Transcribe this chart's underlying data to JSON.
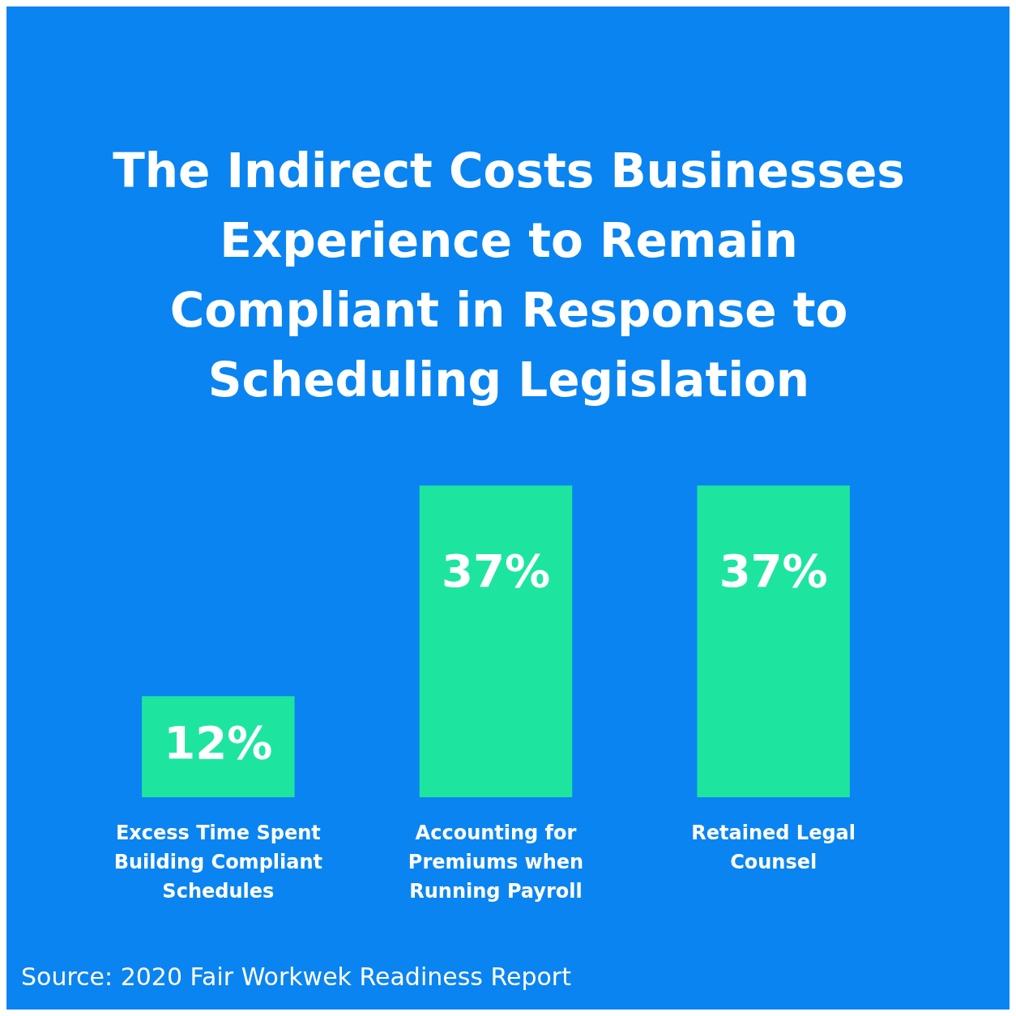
{
  "chart_data": {
    "type": "bar",
    "title": "The Indirect Costs Businesses Experience to Remain Compliant in Response to Scheduling Legislation",
    "categories": [
      "Excess Time Spent Building Compliant Schedules",
      "Accounting for Premiums when Running Payroll",
      "Retained Legal Counsel"
    ],
    "values": [
      12,
      37,
      37
    ],
    "value_labels": [
      "12%",
      "37%",
      "37%"
    ],
    "color": "#1de5a0",
    "grid": false,
    "legend": false,
    "tick_labels": "x",
    "annotations": [
      "Source: 2020 Fair Workwek Readiness Report"
    ]
  }
}
